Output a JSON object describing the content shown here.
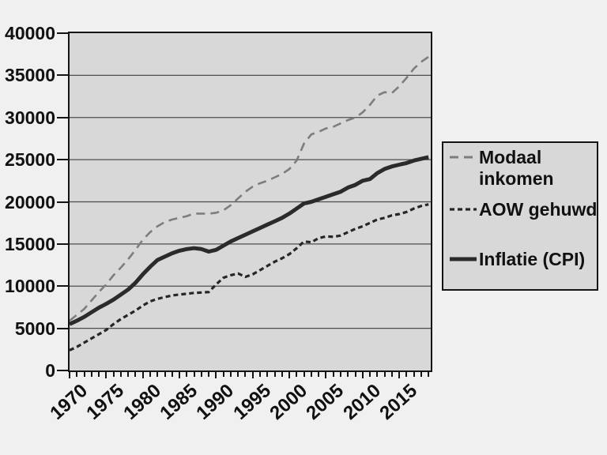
{
  "page": {
    "background_color": "#f0f0f0",
    "plot_background_color": "#d8d8d8",
    "grid_color": "#4d4d4d",
    "frame_color": "#141414",
    "text_color": "#111111"
  },
  "chart_data": {
    "type": "line",
    "title": "",
    "xlabel": "",
    "ylabel": "",
    "grid": "horizontal",
    "legend_position": "right",
    "xlim": [
      1970,
      2019.3
    ],
    "ylim": [
      0,
      40000
    ],
    "yticks": [
      0,
      5000,
      10000,
      15000,
      20000,
      25000,
      30000,
      35000,
      40000
    ],
    "xtick_labels": [
      1970,
      1975,
      1980,
      1985,
      1990,
      1995,
      2000,
      2005,
      2010,
      2015
    ],
    "xtick_minor_step": 1,
    "x": [
      1970,
      1971,
      1972,
      1973,
      1974,
      1975,
      1976,
      1977,
      1978,
      1979,
      1980,
      1981,
      1982,
      1983,
      1984,
      1985,
      1986,
      1987,
      1988,
      1989,
      1990,
      1991,
      1992,
      1993,
      1994,
      1995,
      1996,
      1997,
      1998,
      1999,
      2000,
      2001,
      2002,
      2003,
      2004,
      2005,
      2006,
      2007,
      2008,
      2009,
      2010,
      2011,
      2012,
      2013,
      2014,
      2015,
      2016,
      2017,
      2018,
      2019
    ],
    "series": [
      {
        "name": "Modaal inkomen",
        "key": "modaal",
        "color": "#7d7d7d",
        "dash": "long",
        "stroke_width": 2.6,
        "values": [
          5900,
          6600,
          7300,
          8300,
          9300,
          10200,
          11300,
          12200,
          13200,
          14300,
          15500,
          16400,
          17100,
          17600,
          17900,
          18100,
          18300,
          18600,
          18600,
          18600,
          18700,
          19000,
          19600,
          20400,
          21200,
          21800,
          22200,
          22500,
          22900,
          23300,
          23900,
          24900,
          26900,
          28000,
          28300,
          28700,
          28900,
          29300,
          29700,
          30000,
          30600,
          31500,
          32600,
          33000,
          32900,
          33700,
          34700,
          35800,
          36600,
          37200
        ]
      },
      {
        "name": "AOW gehuwd",
        "key": "aow",
        "color": "#262626",
        "dash": "short",
        "stroke_width": 3.2,
        "values": [
          2400,
          2800,
          3300,
          3800,
          4300,
          4800,
          5500,
          6100,
          6600,
          7100,
          7700,
          8200,
          8500,
          8700,
          8900,
          9000,
          9100,
          9200,
          9250,
          9300,
          10200,
          11000,
          11300,
          11500,
          11100,
          11400,
          11900,
          12400,
          12900,
          13300,
          13800,
          14500,
          15300,
          15200,
          15700,
          15900,
          15850,
          16000,
          16400,
          16800,
          17100,
          17500,
          17900,
          18100,
          18400,
          18550,
          18800,
          19200,
          19500,
          19700
        ]
      },
      {
        "name": "Inflatie (CPI)",
        "key": "inflatie",
        "color": "#2b2b2b",
        "dash": "solid",
        "stroke_width": 5,
        "values": [
          5500,
          5900,
          6350,
          6900,
          7450,
          7900,
          8400,
          9000,
          9600,
          10400,
          11400,
          12300,
          13100,
          13500,
          13900,
          14200,
          14400,
          14500,
          14400,
          14100,
          14300,
          14800,
          15300,
          15700,
          16100,
          16500,
          16900,
          17300,
          17700,
          18100,
          18600,
          19200,
          19800,
          20000,
          20300,
          20600,
          20900,
          21200,
          21700,
          22000,
          22500,
          22700,
          23400,
          23900,
          24200,
          24400,
          24600,
          24900,
          25100,
          25300
        ]
      }
    ]
  }
}
